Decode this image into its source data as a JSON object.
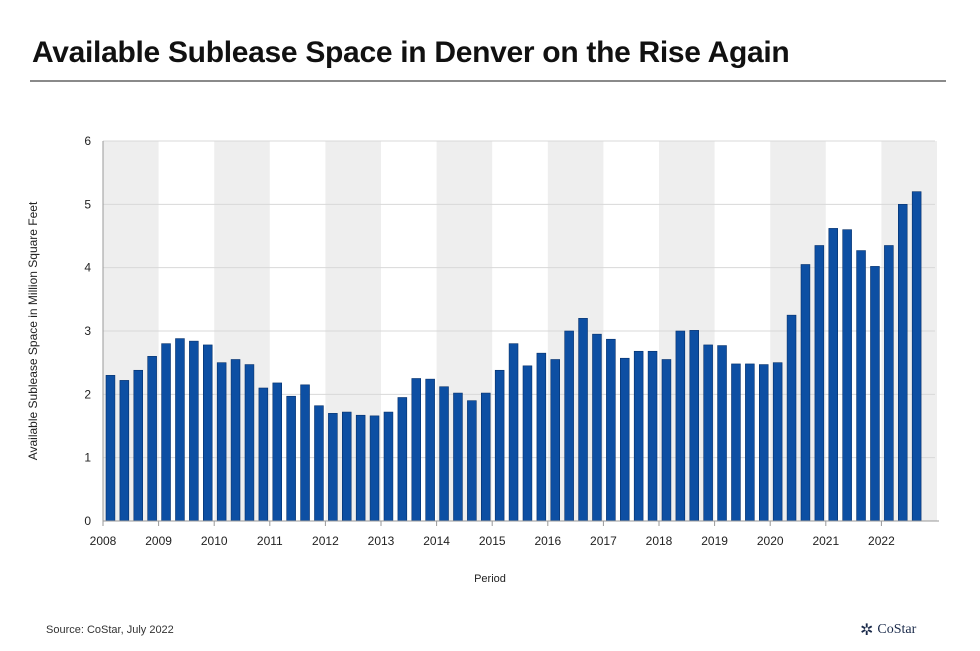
{
  "title": "Available Sublease Space in Denver on the Rise Again",
  "source": "Source: CoStar, July 2022",
  "logo_text": "CoStar",
  "chart_data": {
    "type": "bar",
    "title": "Available Sublease Space in Denver on the Rise Again",
    "xlabel": "Period",
    "ylabel": "Available Sublease Space in Million Square Feet",
    "ylim": [
      0,
      6
    ],
    "yticks": [
      "0",
      "1",
      "2",
      "3",
      "4",
      "5",
      "6"
    ],
    "xticks": [
      "2008",
      "2009",
      "2010",
      "2011",
      "2012",
      "2013",
      "2014",
      "2015",
      "2016",
      "2017",
      "2018",
      "2019",
      "2020",
      "2021",
      "2022"
    ],
    "bars_per_year": 4,
    "grid": true,
    "bar_color": "#0d4fa3",
    "values": [
      2.3,
      2.22,
      2.38,
      2.6,
      2.8,
      2.88,
      2.84,
      2.78,
      2.5,
      2.55,
      2.47,
      2.1,
      2.18,
      1.97,
      2.15,
      1.82,
      1.7,
      1.72,
      1.67,
      1.66,
      1.72,
      1.95,
      2.25,
      2.24,
      2.12,
      2.02,
      1.9,
      2.02,
      2.38,
      2.8,
      2.45,
      2.65,
      2.55,
      3.0,
      3.2,
      2.95,
      2.87,
      2.57,
      2.68,
      2.68,
      2.55,
      3.0,
      3.01,
      2.78,
      2.77,
      2.48,
      2.48,
      2.47,
      2.5,
      3.25,
      4.05,
      4.35,
      4.62,
      4.6,
      4.27,
      4.02,
      4.35,
      5.0,
      5.2
    ]
  }
}
